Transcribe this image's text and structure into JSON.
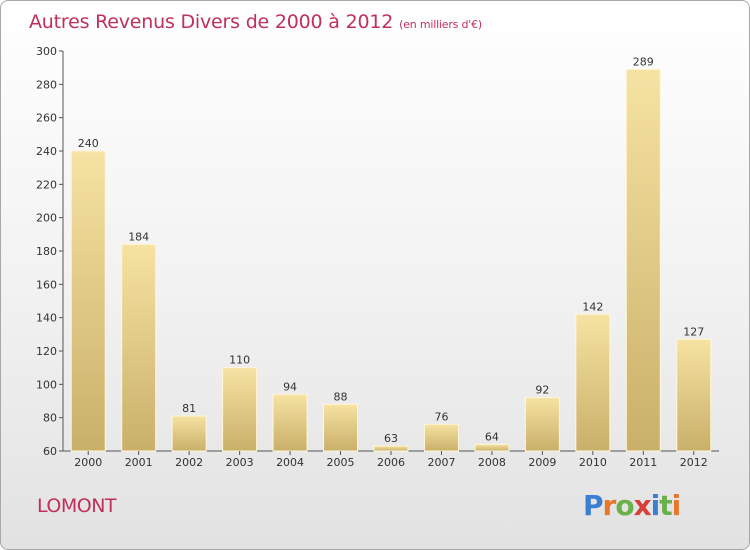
{
  "header": {
    "title": "Autres Revenus Divers de 2000 à 2012",
    "subtitle": "(en milliers d'€)"
  },
  "footer": {
    "location": "LOMONT",
    "logo_text": "Proxiti"
  },
  "colors": {
    "title": "#c0305a",
    "bar_light": "#f6e2a2",
    "bar_dark": "#c9b06a",
    "logo": [
      "#3b7fd0",
      "#e8772a",
      "#6ab04c",
      "#d6403a",
      "#3b7fd0",
      "#6ab04c",
      "#e8772a"
    ]
  },
  "chart_data": {
    "type": "bar",
    "title": "Autres Revenus Divers de 2000 à 2012",
    "subtitle": "(en milliers d'€)",
    "categories": [
      "2000",
      "2001",
      "2002",
      "2003",
      "2004",
      "2005",
      "2006",
      "2007",
      "2008",
      "2009",
      "2010",
      "2011",
      "2012"
    ],
    "values": [
      240,
      184,
      81,
      110,
      94,
      88,
      63,
      76,
      64,
      92,
      142,
      289,
      127
    ],
    "xlabel": "",
    "ylabel": "",
    "ylim": [
      60,
      300
    ],
    "yticks": [
      60,
      80,
      100,
      120,
      140,
      160,
      180,
      200,
      220,
      240,
      260,
      280,
      300
    ],
    "grid": false,
    "data_labels": true
  }
}
